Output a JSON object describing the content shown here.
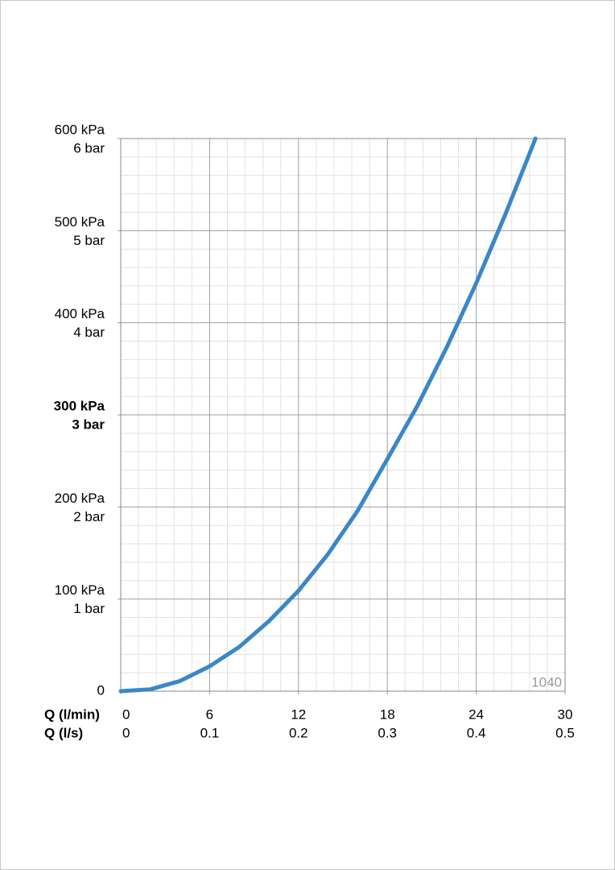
{
  "chart_data": {
    "type": "line",
    "x_label": "Q (l/min)",
    "x2_label": "Q (l/s)",
    "annotation": "1040",
    "x": [
      0,
      2,
      4,
      6,
      8,
      10,
      12,
      14,
      16,
      18,
      20,
      22,
      24,
      26,
      28
    ],
    "series": [
      {
        "color": "#3a87c8",
        "values": [
          0,
          2,
          11,
          27,
          48,
          76,
          109,
          149,
          196,
          252,
          309,
          373,
          443,
          519,
          600
        ]
      }
    ],
    "xlim": [
      0,
      30
    ],
    "xticks": [
      0,
      6,
      12,
      18,
      24,
      30
    ],
    "x2lim": [
      0,
      0.5
    ],
    "x2ticks": [
      0,
      0.1,
      0.2,
      0.3,
      0.4,
      0.5
    ],
    "ylim": [
      0,
      600
    ],
    "yticks": [
      0,
      {
        "value": 100,
        "label": "100 kPa"
      },
      {
        "value": 200,
        "label": "200 kPa"
      },
      {
        "value": 300,
        "label": "300 kPa"
      },
      {
        "value": 400,
        "label": "400 kPa"
      },
      {
        "value": 500,
        "label": "500 kPa"
      },
      {
        "value": 600,
        "label": "600 kPa"
      }
    ],
    "y2lim": [
      0,
      6
    ],
    "y2ticks": [
      {
        "value": 1,
        "label": "1 bar"
      },
      {
        "value": 2,
        "label": "2 bar"
      },
      {
        "value": 3,
        "label": "3 bar"
      },
      {
        "value": 4,
        "label": "4 bar"
      },
      {
        "value": 5,
        "label": "5 bar"
      },
      {
        "value": 6,
        "label": "6 bar"
      }
    ],
    "bold_ytick": 300,
    "bold_y2tick": 3,
    "grid": true,
    "minor_grid_divisions": 5
  }
}
